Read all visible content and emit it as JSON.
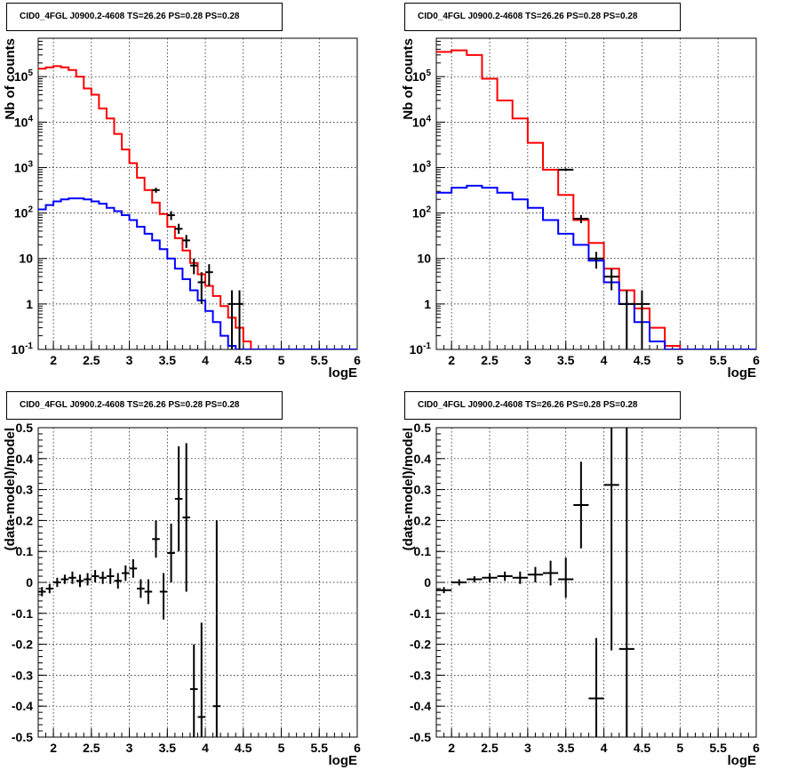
{
  "colors": {
    "data": "#000000",
    "total_model": "#ff0000",
    "source_model": "#0000ff",
    "grid": "#000000"
  },
  "titles": [
    "CID0_4FGL J0900.2-4608 TS=26.26 PS=0.28 PS=0.28",
    "CID0_4FGL J0900.2-4608 TS=26.26 PS=0.28 PS=0.28",
    "CID0_4FGL J0900.2-4608 TS=26.26 PS=0.28 PS=0.28",
    "CID0_4FGL J0900.2-4608 TS=26.26 PS=0.28 PS=0.28"
  ],
  "chart_data": [
    {
      "type": "line",
      "title": "CID0_4FGL J0900.2-4608 TS=26.26 PS=0.28 PS=0.28",
      "xlabel": "logE",
      "ylabel": "Nb of counts",
      "xlim": [
        1.8,
        6.0
      ],
      "ylim": [
        0.1,
        700000
      ],
      "yscale": "log",
      "grid": true,
      "xticks": [
        "2",
        "2.5",
        "3",
        "3.5",
        "4",
        "4.5",
        "5",
        "5.5",
        "6"
      ],
      "yticks": [
        "10^-1",
        "1",
        "10",
        "10^2",
        "10^3",
        "10^4",
        "10^5"
      ],
      "bin_edges": [
        1.8,
        1.9,
        2.0,
        2.1,
        2.2,
        2.3,
        2.4,
        2.5,
        2.6,
        2.7,
        2.8,
        2.9,
        3.0,
        3.1,
        3.2,
        3.3,
        3.4,
        3.5,
        3.6,
        3.7,
        3.8,
        3.9,
        4.0,
        4.1,
        4.2,
        4.3,
        4.4,
        4.5,
        4.6,
        4.7,
        4.8,
        4.9,
        5.0,
        5.1,
        5.2,
        5.3,
        5.4,
        5.5,
        5.6,
        5.7,
        5.8,
        5.9,
        6.0
      ],
      "series": [
        {
          "role": "total_model",
          "values": [
            150000,
            160000,
            170000,
            160000,
            140000,
            100000,
            55000,
            40000,
            20000,
            12000,
            5500,
            2500,
            1250,
            600,
            320,
            170,
            95,
            50,
            28,
            15,
            8,
            4.5,
            2.5,
            1.5,
            0.9,
            0.5,
            0.3,
            0.15,
            0.1,
            0.1,
            0.1,
            0.1,
            0.1,
            0.1,
            0.1,
            0.1,
            0.1,
            0.1,
            0.1,
            0.1,
            0.1,
            0.1
          ]
        },
        {
          "role": "source_model",
          "values": [
            120,
            150,
            180,
            200,
            210,
            210,
            200,
            180,
            160,
            130,
            110,
            90,
            70,
            50,
            35,
            25,
            16,
            10,
            6,
            3.5,
            2,
            1.2,
            0.7,
            0.4,
            0.2,
            0.12,
            0.1,
            0.1,
            0.1,
            0.1,
            0.1,
            0.1,
            0.1,
            0.1,
            0.1,
            0.1,
            0.1,
            0.1,
            0.1,
            0.1,
            0.1,
            0.1
          ]
        },
        {
          "role": "data",
          "points": [
            {
              "x": 3.35,
              "y": 320,
              "lo": 280,
              "hi": 360
            },
            {
              "x": 3.55,
              "y": 90,
              "lo": 70,
              "hi": 110
            },
            {
              "x": 3.65,
              "y": 45,
              "lo": 35,
              "hi": 58
            },
            {
              "x": 3.75,
              "y": 25,
              "lo": 17,
              "hi": 33
            },
            {
              "x": 3.85,
              "y": 7,
              "lo": 4.5,
              "hi": 10
            },
            {
              "x": 3.95,
              "y": 3,
              "lo": 1,
              "hi": 5
            },
            {
              "x": 4.05,
              "y": 5,
              "lo": 2.5,
              "hi": 7.5
            },
            {
              "x": 4.35,
              "y": 1,
              "lo": 0.1,
              "hi": 2
            },
            {
              "x": 4.45,
              "y": 1,
              "lo": 0.1,
              "hi": 2
            }
          ]
        }
      ]
    },
    {
      "type": "line",
      "title": "CID0_4FGL J0900.2-4608 TS=26.26 PS=0.28 PS=0.28",
      "xlabel": "logE",
      "ylabel": "Nb of counts",
      "xlim": [
        1.8,
        6.0
      ],
      "ylim": [
        0.1,
        700000
      ],
      "yscale": "log",
      "grid": true,
      "xticks": [
        "2",
        "2.5",
        "3",
        "3.5",
        "4",
        "4.5",
        "5",
        "5.5",
        "6"
      ],
      "yticks": [
        "10^-1",
        "1",
        "10",
        "10^2",
        "10^3",
        "10^4",
        "10^5"
      ],
      "bin_edges": [
        1.8,
        2.0,
        2.2,
        2.4,
        2.6,
        2.8,
        3.0,
        3.2,
        3.4,
        3.6,
        3.8,
        4.0,
        4.2,
        4.4,
        4.6,
        4.8,
        5.0,
        5.2,
        5.4,
        5.6,
        5.8,
        6.0
      ],
      "series": [
        {
          "role": "total_model",
          "values": [
            350000,
            380000,
            300000,
            90000,
            30000,
            12000,
            3500,
            900,
            250,
            70,
            22,
            6,
            2,
            0.8,
            0.3,
            0.12,
            0.1,
            0.1,
            0.1,
            0.1,
            0.1
          ]
        },
        {
          "role": "source_model",
          "values": [
            280,
            360,
            400,
            360,
            280,
            200,
            130,
            70,
            35,
            20,
            9,
            3,
            1,
            0.4,
            0.15,
            0.1,
            0.1,
            0.1,
            0.1,
            0.1,
            0.1
          ]
        },
        {
          "role": "data",
          "points": [
            {
              "x": 3.5,
              "y": 900,
              "lo": 840,
              "hi": 960
            },
            {
              "x": 3.7,
              "y": 75,
              "lo": 60,
              "hi": 90
            },
            {
              "x": 3.9,
              "y": 10,
              "lo": 6,
              "hi": 14
            },
            {
              "x": 4.1,
              "y": 4,
              "lo": 2,
              "hi": 6
            },
            {
              "x": 4.3,
              "y": 1,
              "lo": 0.1,
              "hi": 2
            },
            {
              "x": 4.5,
              "y": 1,
              "lo": 0.1,
              "hi": 2
            }
          ]
        }
      ]
    },
    {
      "type": "scatter",
      "title": "CID0_4FGL J0900.2-4608 TS=26.26 PS=0.28 PS=0.28",
      "xlabel": "logE",
      "ylabel": "(data-model)/model",
      "xlim": [
        1.8,
        6.0
      ],
      "ylim": [
        -0.5,
        0.5
      ],
      "grid": true,
      "xticks": [
        "2",
        "2.5",
        "3",
        "3.5",
        "4",
        "4.5",
        "5",
        "5.5",
        "6"
      ],
      "yticks": [
        "-0.5",
        "-0.4",
        "-0.3",
        "-0.2",
        "-0.1",
        "0",
        "0.1",
        "0.2",
        "0.3",
        "0.4",
        "0.5"
      ],
      "bin_width": 0.1,
      "points": [
        {
          "x": 1.85,
          "y": -0.03,
          "lo": -0.045,
          "hi": -0.015
        },
        {
          "x": 1.95,
          "y": -0.02,
          "lo": -0.035,
          "hi": -0.005
        },
        {
          "x": 2.05,
          "y": 0.0,
          "lo": -0.015,
          "hi": 0.015
        },
        {
          "x": 2.15,
          "y": 0.01,
          "lo": -0.005,
          "hi": 0.025
        },
        {
          "x": 2.25,
          "y": 0.015,
          "lo": -0.005,
          "hi": 0.035
        },
        {
          "x": 2.35,
          "y": 0.005,
          "lo": -0.015,
          "hi": 0.025
        },
        {
          "x": 2.45,
          "y": 0.01,
          "lo": -0.01,
          "hi": 0.03
        },
        {
          "x": 2.55,
          "y": 0.02,
          "lo": 0.0,
          "hi": 0.04
        },
        {
          "x": 2.65,
          "y": 0.015,
          "lo": -0.005,
          "hi": 0.035
        },
        {
          "x": 2.75,
          "y": 0.02,
          "lo": -0.005,
          "hi": 0.045
        },
        {
          "x": 2.85,
          "y": 0.005,
          "lo": -0.02,
          "hi": 0.03
        },
        {
          "x": 2.95,
          "y": 0.03,
          "lo": 0.005,
          "hi": 0.055
        },
        {
          "x": 3.05,
          "y": 0.045,
          "lo": 0.015,
          "hi": 0.075
        },
        {
          "x": 3.15,
          "y": -0.02,
          "lo": -0.05,
          "hi": 0.01
        },
        {
          "x": 3.25,
          "y": -0.03,
          "lo": -0.07,
          "hi": 0.01
        },
        {
          "x": 3.35,
          "y": 0.14,
          "lo": 0.08,
          "hi": 0.2
        },
        {
          "x": 3.45,
          "y": -0.03,
          "lo": -0.12,
          "hi": 0.03
        },
        {
          "x": 3.55,
          "y": 0.095,
          "lo": 0.0,
          "hi": 0.19
        },
        {
          "x": 3.65,
          "y": 0.27,
          "lo": 0.1,
          "hi": 0.44
        },
        {
          "x": 3.75,
          "y": 0.21,
          "lo": -0.03,
          "hi": 0.45
        },
        {
          "x": 3.85,
          "y": -0.345,
          "lo": -0.5,
          "hi": -0.2
        },
        {
          "x": 3.95,
          "y": -0.435,
          "lo": -0.5,
          "hi": -0.13
        },
        {
          "x": 4.15,
          "y": -0.4,
          "lo": -0.5,
          "hi": 0.2
        }
      ]
    },
    {
      "type": "scatter",
      "title": "CID0_4FGL J0900.2-4608 TS=26.26 PS=0.28 PS=0.28",
      "xlabel": "logE",
      "ylabel": "(data-model)/model",
      "xlim": [
        1.8,
        6.0
      ],
      "ylim": [
        -0.5,
        0.5
      ],
      "grid": true,
      "xticks": [
        "2",
        "2.5",
        "3",
        "3.5",
        "4",
        "4.5",
        "5",
        "5.5",
        "6"
      ],
      "yticks": [
        "-0.5",
        "-0.4",
        "-0.3",
        "-0.2",
        "-0.1",
        "0",
        "0.1",
        "0.2",
        "0.3",
        "0.4",
        "0.5"
      ],
      "bin_width": 0.2,
      "points": [
        {
          "x": 1.9,
          "y": -0.025,
          "lo": -0.035,
          "hi": -0.015
        },
        {
          "x": 2.1,
          "y": 0.0,
          "lo": -0.01,
          "hi": 0.01
        },
        {
          "x": 2.3,
          "y": 0.01,
          "lo": 0.0,
          "hi": 0.02
        },
        {
          "x": 2.5,
          "y": 0.015,
          "lo": 0.0,
          "hi": 0.03
        },
        {
          "x": 2.7,
          "y": 0.02,
          "lo": 0.005,
          "hi": 0.035
        },
        {
          "x": 2.9,
          "y": 0.015,
          "lo": -0.005,
          "hi": 0.035
        },
        {
          "x": 3.1,
          "y": 0.025,
          "lo": 0.0,
          "hi": 0.05
        },
        {
          "x": 3.3,
          "y": 0.03,
          "lo": -0.01,
          "hi": 0.07
        },
        {
          "x": 3.5,
          "y": 0.01,
          "lo": -0.05,
          "hi": 0.08
        },
        {
          "x": 3.7,
          "y": 0.25,
          "lo": 0.11,
          "hi": 0.39
        },
        {
          "x": 3.9,
          "y": -0.375,
          "lo": -0.5,
          "hi": -0.18
        },
        {
          "x": 4.1,
          "y": 0.315,
          "lo": -0.22,
          "hi": 0.5
        },
        {
          "x": 4.3,
          "y": -0.215,
          "lo": -0.5,
          "hi": 0.5
        }
      ]
    }
  ]
}
